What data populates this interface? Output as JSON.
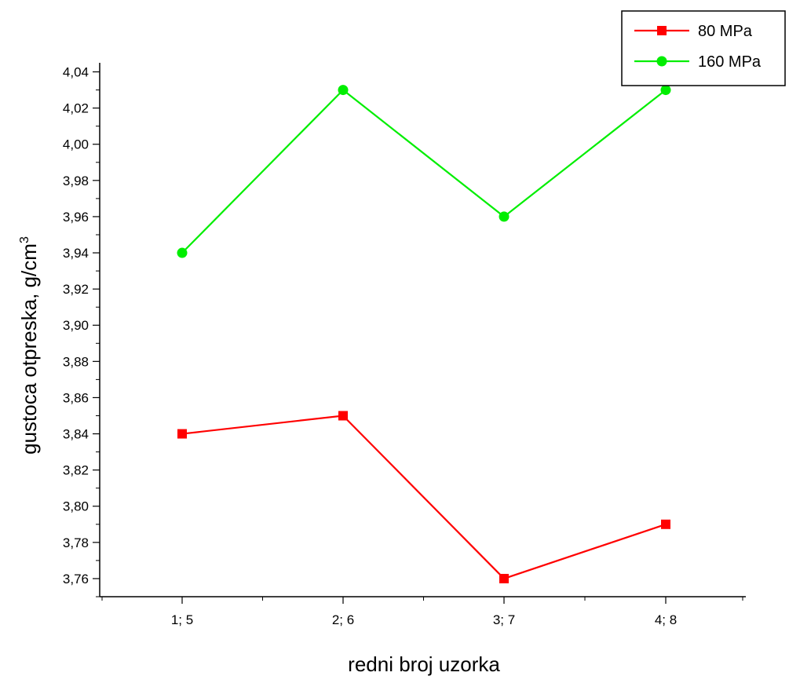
{
  "chart_data": {
    "type": "line",
    "categories": [
      "1; 5",
      "2; 6",
      "3; 7",
      "4; 8"
    ],
    "series": [
      {
        "name": "80 MPa",
        "values": [
          3.84,
          3.85,
          3.76,
          3.79
        ],
        "color": "#ff0000",
        "marker": "square"
      },
      {
        "name": "160 MPa",
        "values": [
          3.94,
          4.03,
          3.96,
          4.03
        ],
        "color": "#00ee00",
        "marker": "circle"
      }
    ],
    "title": "",
    "xlabel": "redni broj uzorka",
    "ylabel": "gustoca otpreska, g/cm",
    "ylabel_superscript": "3",
    "ylim": [
      3.75,
      4.045
    ],
    "yticks": [
      "3,76",
      "3,78",
      "3,80",
      "3,82",
      "3,84",
      "3,86",
      "3,88",
      "3,90",
      "3,92",
      "3,94",
      "3,96",
      "3,98",
      "4,00",
      "4,02",
      "4,04"
    ],
    "grid": false,
    "legend_position": "top-right"
  }
}
